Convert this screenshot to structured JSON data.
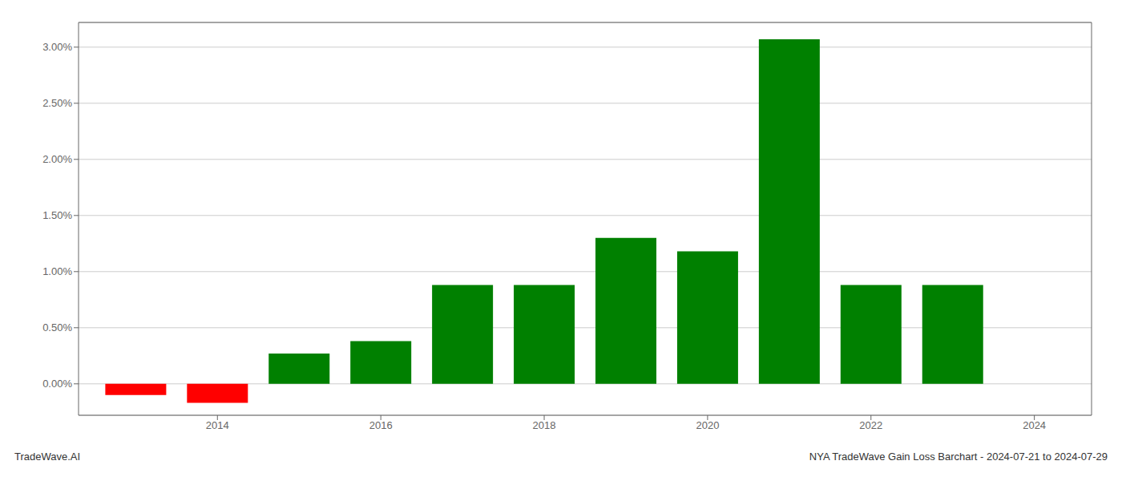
{
  "chart_data": {
    "type": "bar",
    "x": [
      2013,
      2014,
      2015,
      2016,
      2017,
      2018,
      2019,
      2020,
      2021,
      2022,
      2023
    ],
    "values": [
      -0.1,
      -0.17,
      0.27,
      0.38,
      0.88,
      0.88,
      1.3,
      1.18,
      3.07,
      0.88,
      0.88
    ],
    "colors": [
      "#ff0000",
      "#ff0000",
      "#008000",
      "#008000",
      "#008000",
      "#008000",
      "#008000",
      "#008000",
      "#008000",
      "#008000",
      "#008000"
    ],
    "xlim": [
      2012.3,
      2024.7
    ],
    "xticks": [
      2014,
      2016,
      2018,
      2020,
      2022,
      2024
    ],
    "ylim": [
      -0.28,
      3.22
    ],
    "yticks": [
      {
        "value": 0.0,
        "label": "0.00%"
      },
      {
        "value": 0.5,
        "label": "0.50%"
      },
      {
        "value": 1.0,
        "label": "1.00%"
      },
      {
        "value": 1.5,
        "label": "1.50%"
      },
      {
        "value": 2.0,
        "label": "2.00%"
      },
      {
        "value": 2.5,
        "label": "2.50%"
      },
      {
        "value": 3.0,
        "label": "3.00%"
      }
    ],
    "grid": true,
    "annotations": [
      "TradeWave.AI",
      "NYA TradeWave Gain Loss Barchart - 2024-07-21 to 2024-07-29"
    ]
  }
}
